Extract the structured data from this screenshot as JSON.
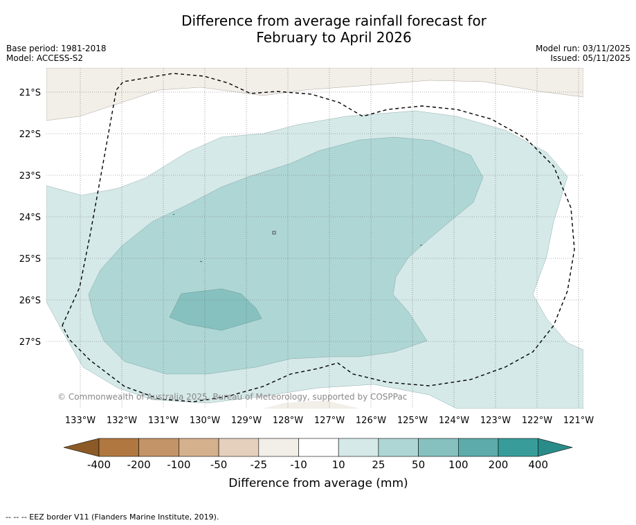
{
  "title_line1": "Difference from average rainfall forecast for",
  "title_line2": "February to April 2026",
  "base_period": "Base period: 1981-2018",
  "model": "Model: ACCESS-S2",
  "model_run": "Model run: 03/11/2025",
  "issued": "Issued: 05/11/2025",
  "copyright": "© Commonwealth of Australia 2025, Bureau of Meteorology, supported by COSPPac",
  "latitudes": [
    "21°S",
    "22°S",
    "23°S",
    "24°S",
    "25°S",
    "26°S",
    "27°S"
  ],
  "longitudes": [
    "133°W",
    "132°W",
    "131°W",
    "130°W",
    "129°W",
    "128°W",
    "127°W",
    "126°W",
    "125°W",
    "124°W",
    "123°W",
    "122°W",
    "121°W"
  ],
  "colorbar": {
    "ticks": [
      "-400",
      "-200",
      "-100",
      "-50",
      "-25",
      "-10",
      "10",
      "25",
      "50",
      "100",
      "200",
      "400"
    ],
    "colors": [
      "#8c5a26",
      "#b07840",
      "#c29468",
      "#d4b08c",
      "#e4d0bc",
      "#f2eee8",
      "#ffffff",
      "#d5e9e8",
      "#aed6d5",
      "#86c1c0",
      "#5dacab",
      "#389d9a",
      "#2a8c89"
    ],
    "label": "Difference from average (mm)"
  },
  "legend_note": "-- -- -- EEZ border V11 (Flanders Marine Institute, 2019).",
  "colors": {
    "light_brown": "#f2eee8",
    "teal_10_25": "#d5e9e8",
    "teal_25_50": "#aed6d5",
    "teal_50_100": "#86c1c0",
    "grid": "#555555"
  }
}
